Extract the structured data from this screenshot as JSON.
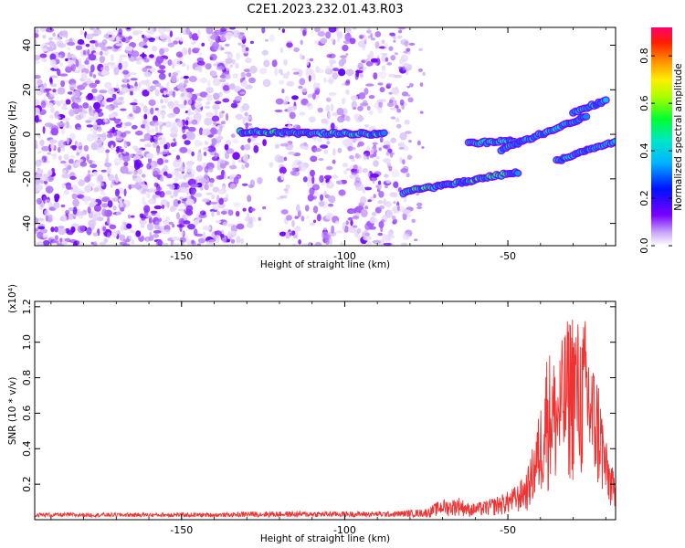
{
  "title": "C2E1.2023.232.01.43.R03",
  "colors": {
    "spectrogram_purple": "#7a00ff",
    "spectrogram_light": "#c9a6f2",
    "snr_line": "#ee3333"
  },
  "chart_data": [
    {
      "type": "heatmap",
      "xlabel": "Height of straight line (km)",
      "ylabel": "Frequency (Hz)",
      "xlim": [
        -195,
        -17
      ],
      "ylim": [
        -50,
        48
      ],
      "xticks": [
        -150,
        -100,
        -50
      ],
      "xtick_labels": [
        "-150",
        "-100",
        "-50"
      ],
      "yticks": [
        -40,
        -20,
        0,
        20,
        40
      ],
      "ytick_labels": [
        "-40",
        "-20",
        "0",
        "20",
        "40"
      ],
      "colorbar": {
        "label": "Normalized spectral amplitude",
        "range": [
          0,
          0.92
        ],
        "ticks": [
          0.0,
          0.2,
          0.4,
          0.6,
          0.8
        ],
        "tick_labels": [
          "0.0",
          "0.2",
          "0.4",
          "0.6",
          "0.8"
        ],
        "colormap": "rainbow-violet-to-red"
      },
      "features": [
        {
          "x_range": [
            -132,
            -88
          ],
          "y_start": 1,
          "y_end": 0,
          "peak_amplitude": 0.6
        },
        {
          "x_range": [
            -82,
            -47
          ],
          "y_start": -26,
          "y_end": -17,
          "peak_amplitude": 0.9
        },
        {
          "x_range": [
            -62,
            -48
          ],
          "y_start": -4,
          "y_end": -3,
          "peak_amplitude": 0.5
        },
        {
          "x_range": [
            -52,
            -26
          ],
          "y_start": -7,
          "y_end": 8,
          "peak_amplitude": 0.45
        },
        {
          "x_range": [
            -30,
            -20
          ],
          "y_start": 10,
          "y_end": 15,
          "peak_amplitude": 0.35
        },
        {
          "x_range": [
            -35,
            -17
          ],
          "y_start": -12,
          "y_end": -3,
          "peak_amplitude": 0.4
        }
      ],
      "background_noise": {
        "x_range": [
          -195,
          -80
        ],
        "y_range": [
          -50,
          48
        ],
        "amplitude": [
          0.02,
          0.15
        ]
      }
    },
    {
      "type": "line",
      "xlabel": "Height of straight line (km)",
      "ylabel": "SNR (10 * v/v)",
      "y_multiplier": "(x10⁴)",
      "xlim": [
        -195,
        -17
      ],
      "ylim": [
        0,
        1.23
      ],
      "xticks": [
        -150,
        -100,
        -50
      ],
      "xtick_labels": [
        "-150",
        "-100",
        "-50"
      ],
      "yticks": [
        0.2,
        0.4,
        0.6,
        0.8,
        1.0,
        1.2
      ],
      "ytick_labels": [
        "0.2",
        "0.4",
        "0.6",
        "0.8",
        "1.0",
        "1.2"
      ],
      "envelope": {
        "x": [
          -195,
          -170,
          -150,
          -135,
          -130,
          -125,
          -110,
          -100,
          -85,
          -80,
          -75,
          -70,
          -68,
          -65,
          -62,
          -58,
          -55,
          -50,
          -47,
          -44,
          -42,
          -40,
          -38,
          -35,
          -32,
          -30,
          -28,
          -26,
          -24,
          -22,
          -20,
          -17
        ],
        "y": [
          0.03,
          0.03,
          0.03,
          0.03,
          0.04,
          0.04,
          0.04,
          0.04,
          0.04,
          0.05,
          0.06,
          0.12,
          0.11,
          0.13,
          0.09,
          0.1,
          0.12,
          0.16,
          0.2,
          0.28,
          0.45,
          0.65,
          0.98,
          0.9,
          1.12,
          1.23,
          1.1,
          1.15,
          0.9,
          0.8,
          0.45,
          0.22
        ]
      }
    }
  ]
}
